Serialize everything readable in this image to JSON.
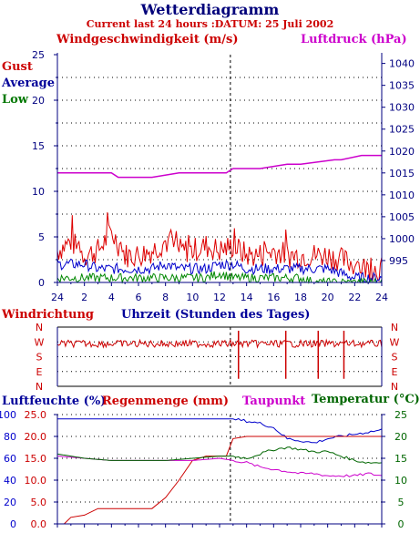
{
  "title": "Wetterdiagramm",
  "subtitle": "Current last 24 hours :DATUM: 25 Juli 2002",
  "colors": {
    "gust": "#dd0000",
    "average": "#0000cc",
    "low": "#008800",
    "pressure": "#cc00cc",
    "wind_direction": "#cc0000",
    "humidity": "#0000cc",
    "rain": "#cc0000",
    "dewpoint": "#cc00cc",
    "temperature": "#006600",
    "axis": "#000080"
  },
  "chart_data": [
    {
      "type": "line",
      "title": "Windgeschwindigkeit (m/s)",
      "right_title": "Luftdruck (hPa)",
      "legend": [
        "Gust",
        "Average",
        "Low"
      ],
      "x_ticks": [
        "24",
        "2",
        "4",
        "6",
        "8",
        "10",
        "12",
        "14",
        "16",
        "18",
        "20",
        "22",
        "24"
      ],
      "ylim": [
        0,
        25
      ],
      "y_ticks": [
        "0",
        "5",
        "10",
        "15",
        "20",
        "25"
      ],
      "y2lim": [
        990,
        1042
      ],
      "y2_ticks": [
        "995",
        "1000",
        "1005",
        "1010",
        "1015",
        "1020",
        "1025",
        "1030",
        "1035",
        "1040"
      ],
      "grid": true,
      "series": [
        {
          "name": "Gust",
          "x": [
            0,
            1,
            2,
            3,
            4,
            5,
            6,
            7,
            8,
            9,
            10,
            11,
            12,
            13,
            14,
            15,
            16,
            17,
            18,
            19,
            20,
            21,
            22,
            23,
            24
          ],
          "values": [
            3.5,
            4.5,
            3.0,
            3.5,
            5.5,
            3.0,
            3.0,
            3.5,
            4.5,
            3.5,
            3.5,
            4.0,
            3.5,
            4.0,
            3.0,
            3.0,
            3.5,
            3.0,
            3.0,
            3.0,
            3.0,
            2.5,
            2.0,
            1.5,
            1.5
          ]
        },
        {
          "name": "Average",
          "x": [
            0,
            1,
            2,
            3,
            4,
            5,
            6,
            7,
            8,
            9,
            10,
            11,
            12,
            13,
            14,
            15,
            16,
            17,
            18,
            19,
            20,
            21,
            22,
            23,
            24
          ],
          "values": [
            2.0,
            2.0,
            2.0,
            1.5,
            1.5,
            1.5,
            1.5,
            1.5,
            2.0,
            1.5,
            1.5,
            1.5,
            2.0,
            2.0,
            1.5,
            1.5,
            1.5,
            1.5,
            1.5,
            1.5,
            1.5,
            1.0,
            0.5,
            0.5,
            0.5
          ]
        },
        {
          "name": "Low",
          "x": [
            0,
            1,
            2,
            3,
            4,
            5,
            6,
            7,
            8,
            9,
            10,
            11,
            12,
            13,
            14,
            15,
            16,
            17,
            18,
            19,
            20,
            21,
            22,
            23,
            24
          ],
          "values": [
            0.5,
            0.5,
            0.5,
            0.5,
            0.5,
            0.5,
            0.5,
            0.5,
            0.5,
            0.5,
            0.5,
            0.5,
            1.0,
            0.5,
            0.5,
            0.5,
            0.5,
            0.5,
            0.5,
            0.0,
            0.0,
            0.0,
            0.0,
            0.0,
            0.0
          ]
        },
        {
          "name": "Luftdruck",
          "axis": "right",
          "x": [
            0,
            4,
            4.5,
            7,
            9,
            11,
            12.5,
            13,
            15,
            17,
            18,
            20.5,
            21,
            22.5,
            24
          ],
          "values": [
            1015,
            1015,
            1014,
            1014,
            1015,
            1015,
            1015,
            1016,
            1016,
            1017,
            1017,
            1018,
            1018,
            1019,
            1019
          ]
        }
      ]
    },
    {
      "type": "line",
      "title": "Windrichtung",
      "subtitle": "Uhrzeit (Stunden des Tages)",
      "y_ticks": [
        "N",
        "W",
        "S",
        "E",
        "N"
      ],
      "grid": true,
      "series": [
        {
          "name": "Windrichtung",
          "x": [
            0,
            2,
            4,
            6,
            8,
            10,
            12,
            13,
            14,
            16,
            18,
            20,
            22,
            24
          ],
          "values": [
            "W",
            "W",
            "W",
            "W",
            "W",
            "W",
            "W",
            "W",
            "W",
            "W",
            "W",
            "W",
            "W",
            "W"
          ]
        }
      ]
    },
    {
      "type": "line",
      "titles": [
        "Luftfeuchte (%)",
        "Regenmenge (mm)",
        "Taupunkt",
        "Temperatur (°C)"
      ],
      "ylim": [
        0,
        100
      ],
      "y_ticks": [
        "0",
        "20",
        "40",
        "60",
        "80",
        "100"
      ],
      "y_rain_ticks": [
        "0.0",
        "5.0",
        "10.0",
        "15.0",
        "20.0",
        "25.0"
      ],
      "y2lim": [
        0,
        25
      ],
      "y2_ticks": [
        "0",
        "5",
        "10",
        "15",
        "20",
        "25"
      ],
      "grid": true,
      "series": [
        {
          "name": "Luftfeuchte",
          "x": [
            0,
            2,
            4,
            6,
            8,
            10,
            12,
            13,
            14,
            15,
            16,
            17,
            18,
            19,
            20,
            21,
            22,
            23,
            24
          ],
          "values": [
            96,
            96,
            96,
            96,
            96,
            96,
            96,
            96,
            94,
            92,
            88,
            78,
            76,
            74,
            78,
            80,
            82,
            84,
            86
          ]
        },
        {
          "name": "Regenmenge",
          "x": [
            0,
            0.5,
            1,
            2,
            3,
            5,
            6,
            7,
            8,
            9,
            10,
            11,
            12,
            12.5,
            13,
            14,
            16,
            18,
            20,
            22,
            24
          ],
          "values": [
            0.0,
            0.0,
            1.5,
            2.0,
            3.5,
            3.5,
            3.5,
            3.5,
            6.0,
            10.0,
            14.5,
            15.5,
            15.5,
            15.5,
            19.5,
            20.0,
            20.0,
            20.0,
            20.0,
            20.0,
            20.0
          ]
        },
        {
          "name": "Taupunkt",
          "x": [
            0,
            2,
            4,
            6,
            8,
            10,
            12,
            13,
            14,
            15,
            16,
            17,
            18,
            19,
            20,
            21,
            22,
            23,
            24
          ],
          "values": [
            15.5,
            15.0,
            14.5,
            14.5,
            14.5,
            14.5,
            15.0,
            14.5,
            14.0,
            13.0,
            12.5,
            12.0,
            11.5,
            11.5,
            11.0,
            11.0,
            11.0,
            11.5,
            11.0
          ]
        },
        {
          "name": "Temperatur",
          "x": [
            0,
            2,
            4,
            6,
            8,
            10,
            12,
            13,
            14,
            15,
            16,
            17,
            18,
            19,
            20,
            21,
            22,
            23,
            24
          ],
          "values": [
            16.0,
            15.0,
            14.5,
            14.5,
            14.5,
            15.0,
            15.5,
            15.5,
            15.0,
            16.0,
            17.0,
            17.5,
            17.0,
            16.5,
            16.5,
            15.5,
            14.5,
            14.0,
            14.0
          ]
        }
      ]
    }
  ]
}
